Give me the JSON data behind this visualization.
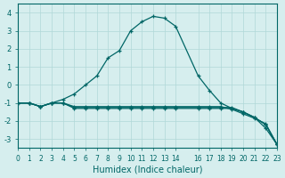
{
  "xlabel": "Humidex (Indice chaleur)",
  "xlim": [
    0,
    23
  ],
  "ylim": [
    -3.5,
    4.5
  ],
  "xtick_positions": [
    0,
    1,
    2,
    3,
    4,
    5,
    6,
    7,
    8,
    9,
    10,
    11,
    12,
    13,
    14,
    16,
    17,
    18,
    19,
    20,
    21,
    22,
    23
  ],
  "xtick_labels": [
    "0",
    "1",
    "2",
    "3",
    "4",
    "5",
    "6",
    "7",
    "8",
    "9",
    "10",
    "11",
    "12",
    "13",
    "14",
    "16",
    "17",
    "18",
    "19",
    "20",
    "21",
    "22",
    "23"
  ],
  "yticks": [
    -3,
    -2,
    -1,
    0,
    1,
    2,
    3,
    4
  ],
  "background_color": "#d6eeee",
  "grid_color": "#b0d8d8",
  "line_color": "#006666",
  "lines": [
    {
      "x": [
        0,
        1,
        2,
        3,
        4,
        5,
        6,
        7,
        8,
        9,
        10,
        11,
        12,
        13,
        14,
        16,
        17,
        18,
        19,
        20,
        21,
        22,
        23
      ],
      "y": [
        -1,
        -1,
        -1.2,
        -1,
        -1,
        -1.3,
        -1.3,
        -1.3,
        -1.3,
        -1.3,
        -1.3,
        -1.3,
        -1.3,
        -1.3,
        -1.3,
        -1.3,
        -1.3,
        -1.3,
        -1.3,
        -1.5,
        -1.8,
        -2.2,
        -3.3
      ]
    },
    {
      "x": [
        0,
        1,
        2,
        3,
        4,
        5,
        6,
        7,
        8,
        9,
        10,
        11,
        12,
        13,
        14,
        16,
        17,
        18,
        19,
        20,
        21,
        22,
        23
      ],
      "y": [
        -1,
        -1,
        -1.2,
        -1,
        -1,
        -1.25,
        -1.25,
        -1.25,
        -1.25,
        -1.25,
        -1.25,
        -1.25,
        -1.25,
        -1.25,
        -1.25,
        -1.25,
        -1.25,
        -1.25,
        -1.25,
        -1.5,
        -1.8,
        -2.2,
        -3.3
      ]
    },
    {
      "x": [
        0,
        1,
        2,
        3,
        4,
        5,
        6,
        7,
        8,
        9,
        10,
        11,
        12,
        13,
        14,
        16,
        17,
        18,
        19,
        20,
        21,
        22,
        23
      ],
      "y": [
        -1,
        -1,
        -1.2,
        -1,
        -1,
        -1.2,
        -1.2,
        -1.2,
        -1.2,
        -1.2,
        -1.2,
        -1.2,
        -1.2,
        -1.2,
        -1.2,
        -1.2,
        -1.2,
        -1.2,
        -1.35,
        -1.6,
        -1.85,
        -2.15,
        -3.3
      ]
    },
    {
      "x": [
        0,
        1,
        2,
        3,
        4,
        5,
        6,
        7,
        8,
        9,
        10,
        11,
        12,
        13,
        14,
        16,
        17,
        18,
        19,
        20,
        21,
        22,
        23
      ],
      "y": [
        -1,
        -1,
        -1.2,
        -1,
        -0.8,
        -0.5,
        0.0,
        0.5,
        1.5,
        1.9,
        3.0,
        3.5,
        3.8,
        3.7,
        3.25,
        0.5,
        -0.3,
        -1.0,
        -1.3,
        -1.5,
        -1.8,
        -2.4,
        -3.3
      ]
    }
  ]
}
